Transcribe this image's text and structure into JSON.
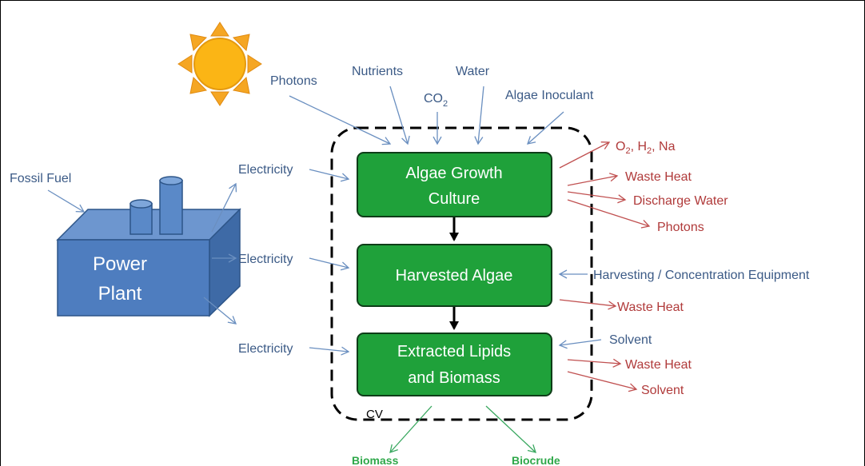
{
  "sun_label": null,
  "power_plant": {
    "line1": "Power",
    "line2": "Plant"
  },
  "fossil_fuel": "Fossil Fuel",
  "electricity": [
    "Electricity",
    "Electricity",
    "Electricity"
  ],
  "inputs": {
    "photons": "Photons",
    "nutrients": "Nutrients",
    "co2": {
      "base": "CO",
      "sub": "2"
    },
    "water": "Water",
    "algae_inoculant": "Algae Inoculant"
  },
  "boxes": [
    {
      "line1": "Algae Growth",
      "line2": "Culture"
    },
    {
      "line1": "Harvested Algae"
    },
    {
      "line1": "Extracted Lipids",
      "line2": "and Biomass"
    }
  ],
  "outputs_growth": {
    "gases": [
      "O",
      "2",
      ", H",
      "2",
      ", Na"
    ],
    "waste_heat": "Waste Heat",
    "discharge_water": "Discharge Water",
    "photons": "Photons"
  },
  "harvest": {
    "equipment": "Harvesting / Concentration Equipment",
    "waste_heat": "Waste Heat"
  },
  "extraction": {
    "solvent_in": "Solvent",
    "waste_heat": "Waste Heat",
    "solvent_out": "Solvent"
  },
  "cv_label": "CV",
  "products": {
    "biomass": "Biomass",
    "biocrude": "Biocrude"
  }
}
